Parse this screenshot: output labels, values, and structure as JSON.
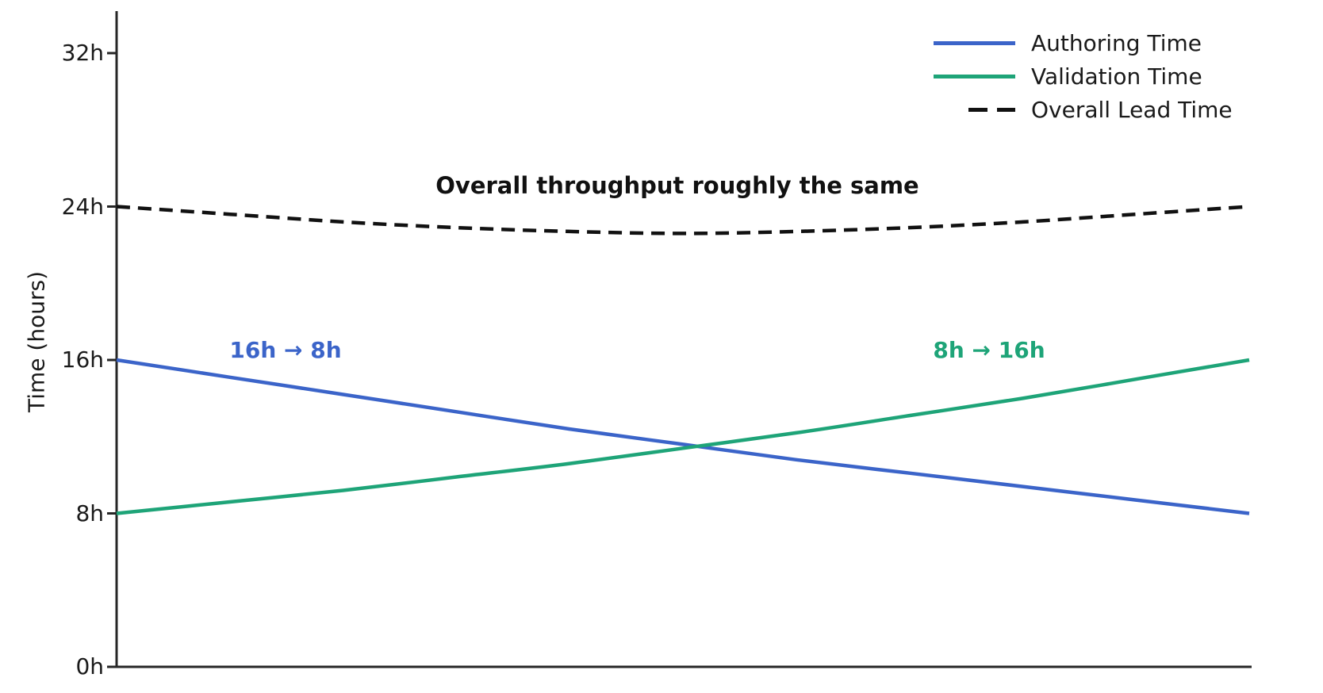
{
  "chart_data": {
    "type": "line",
    "title": "",
    "xlabel": "",
    "ylabel": "Time (hours)",
    "ylim": [
      0,
      32
    ],
    "grid": false,
    "legend_position": "upper right",
    "axis_color": "#262626",
    "yticks": [
      {
        "value": 0,
        "label": "0h"
      },
      {
        "value": 8,
        "label": "8h"
      },
      {
        "value": 16,
        "label": "16h"
      },
      {
        "value": 24,
        "label": "24h"
      },
      {
        "value": 32,
        "label": "32h"
      }
    ],
    "x_percent": [
      0,
      10,
      20,
      30,
      40,
      50,
      60,
      70,
      80,
      90,
      100
    ],
    "series": [
      {
        "name": "Authoring Time",
        "color": "#3b64c9",
        "dash": "solid",
        "values": [
          16.0,
          15.1,
          14.2,
          13.3,
          12.4,
          11.6,
          10.8,
          10.1,
          9.4,
          8.7,
          8.0
        ]
      },
      {
        "name": "Validation Time",
        "color": "#1ea478",
        "dash": "solid",
        "values": [
          8.0,
          8.6,
          9.2,
          9.9,
          10.6,
          11.4,
          12.2,
          13.1,
          14.0,
          15.0,
          16.0
        ]
      },
      {
        "name": "Overall Lead Time",
        "color": "#111111",
        "dash": "dashed",
        "values": [
          24.0,
          23.6,
          23.2,
          22.9,
          22.7,
          22.6,
          22.7,
          22.9,
          23.2,
          23.6,
          24.0
        ]
      }
    ],
    "annotations": [
      {
        "text": "Overall throughput roughly the same",
        "color": "#111111"
      },
      {
        "text": "16h → 8h",
        "color": "#3b64c9"
      },
      {
        "text": "8h → 16h",
        "color": "#1ea478"
      }
    ]
  }
}
